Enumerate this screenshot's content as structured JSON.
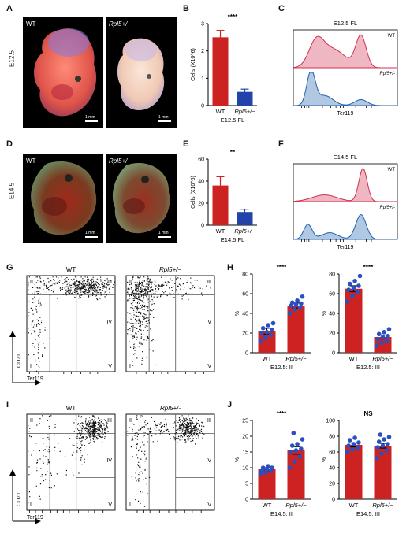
{
  "panels": {
    "A": "A",
    "B": "B",
    "C": "C",
    "D": "D",
    "E": "E",
    "F": "F",
    "G": "G",
    "H": "H",
    "I": "I",
    "J": "J"
  },
  "genotypes": {
    "wt": "WT",
    "mut": "Rpl5+/−",
    "mut_alt": "Rpl5+/-"
  },
  "stages": {
    "e125": "E12.5",
    "e145": "E14.5"
  },
  "scale": "1 mm",
  "histogram": {
    "c_title": "E12.5 FL",
    "f_title": "E14.5 FL",
    "xlabel": "Ter119",
    "colors": {
      "wt": "#d03050",
      "mut": "#2060b0"
    }
  },
  "flow": {
    "x_axis": "Ter119",
    "y_axis": "CD71",
    "quadrants": [
      "II",
      "III",
      "IV",
      "I",
      "V"
    ]
  },
  "chart_data": [
    {
      "id": "B",
      "type": "bar",
      "categories": [
        "WT",
        "Rpl5+/−"
      ],
      "values": [
        2.5,
        0.5
      ],
      "errors": [
        0.25,
        0.1
      ],
      "colors": [
        "#cc2222",
        "#2244aa"
      ],
      "ylabel": "Cells (X10^6)",
      "xlabel": "E12.5 FL",
      "ylim": [
        0,
        3
      ],
      "yticks": [
        "0",
        "1",
        "2",
        "3"
      ],
      "significance": "****"
    },
    {
      "id": "E",
      "type": "bar",
      "categories": [
        "WT",
        "Rpl5+/−"
      ],
      "values": [
        36,
        12
      ],
      "errors": [
        8,
        2.5
      ],
      "colors": [
        "#cc2222",
        "#2244aa"
      ],
      "ylabel": "Cells (X10^6)",
      "xlabel": "E14.5 FL",
      "ylim": [
        0,
        60
      ],
      "yticks": [
        "0",
        "20",
        "40",
        "60"
      ],
      "significance": "**"
    },
    {
      "id": "H1",
      "type": "bar",
      "categories": [
        "WT",
        "Rpl5+/−"
      ],
      "values": [
        22,
        48
      ],
      "errors": [
        3,
        2.5
      ],
      "colors": [
        "#cc2222",
        "#cc2222"
      ],
      "points": [
        [
          12,
          15,
          18,
          20,
          21,
          23,
          25,
          28,
          30
        ],
        [
          40,
          44,
          46,
          48,
          49,
          50,
          51,
          53,
          57
        ]
      ],
      "ylabel": "%",
      "xlabel": "E12.5: II",
      "ylim": [
        0,
        80
      ],
      "yticks": [
        "0",
        "20",
        "40",
        "60",
        "80"
      ],
      "significance": "****"
    },
    {
      "id": "H2",
      "type": "bar",
      "categories": [
        "WT",
        "Rpl5+/−"
      ],
      "values": [
        65,
        16
      ],
      "errors": [
        3,
        2
      ],
      "colors": [
        "#cc2222",
        "#cc2222"
      ],
      "points": [
        [
          52,
          58,
          62,
          64,
          66,
          68,
          70,
          73,
          78
        ],
        [
          7,
          10,
          12,
          14,
          16,
          17,
          19,
          21,
          24
        ]
      ],
      "ylabel": "%",
      "xlabel": "E12.5: III",
      "ylim": [
        0,
        80
      ],
      "yticks": [
        "0",
        "20",
        "40",
        "60",
        "80"
      ],
      "significance": "****"
    },
    {
      "id": "J1",
      "type": "bar",
      "categories": [
        "WT",
        "Rpl5+/−"
      ],
      "values": [
        9.5,
        15.5
      ],
      "errors": [
        0.5,
        1.2
      ],
      "colors": [
        "#cc2222",
        "#cc2222"
      ],
      "points": [
        [
          8,
          8.5,
          9,
          9,
          9.5,
          10,
          10,
          10.5
        ],
        [
          10,
          12,
          13.5,
          15,
          15.5,
          16,
          17,
          17.5,
          19,
          21
        ]
      ],
      "ylabel": "%",
      "xlabel": "E14.5: II",
      "ylim": [
        0,
        25
      ],
      "yticks": [
        "0",
        "5",
        "10",
        "15",
        "20",
        "25"
      ],
      "significance": "****"
    },
    {
      "id": "J2",
      "type": "bar",
      "categories": [
        "WT",
        "Rpl5+/−"
      ],
      "values": [
        69,
        68
      ],
      "errors": [
        2.5,
        3
      ],
      "colors": [
        "#cc2222",
        "#cc2222"
      ],
      "points": [
        [
          60,
          63,
          65,
          68,
          70,
          72,
          75,
          78
        ],
        [
          52,
          58,
          62,
          66,
          68,
          70,
          73,
          76,
          79,
          82
        ]
      ],
      "ylabel": "%",
      "xlabel": "E14.5: III",
      "ylim": [
        0,
        100
      ],
      "yticks": [
        "0",
        "20",
        "40",
        "60",
        "80",
        "100"
      ],
      "significance": "NS"
    }
  ]
}
